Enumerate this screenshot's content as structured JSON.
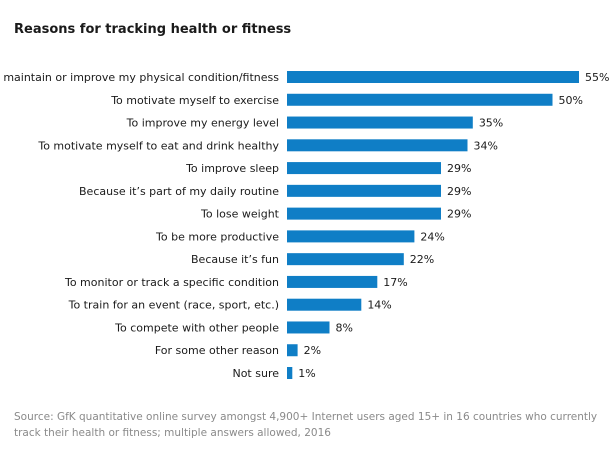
{
  "chart_data": {
    "type": "bar",
    "orientation": "horizontal",
    "title": "Reasons for tracking health or fitness",
    "categories": [
      "To maintain or improve my physical condition/fitness",
      "To motivate myself to exercise",
      "To improve my energy level",
      "To motivate myself to eat and drink healthy",
      "To improve sleep",
      "Because it’s part of my daily routine",
      "To lose weight",
      "To be more productive",
      "Because it’s fun",
      "To monitor or track a specific condition",
      "To train for an event (race, sport, etc.)",
      "To compete with other people",
      "For some other reason",
      "Not sure"
    ],
    "values": [
      55,
      50,
      35,
      34,
      29,
      29,
      29,
      24,
      22,
      17,
      14,
      8,
      2,
      1
    ],
    "value_suffix": "%",
    "bar_color": "#0f7ec6",
    "grid": false
  },
  "source": "Source: GfK quantitative online survey amongst 4,900+ Internet users aged 15+ in 16 countries who currently track their health or fitness; multiple answers allowed, 2016"
}
